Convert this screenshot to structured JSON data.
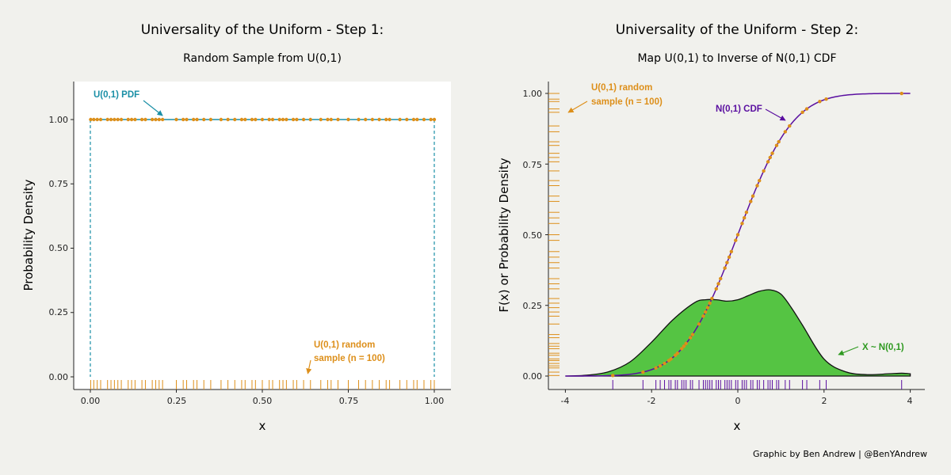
{
  "colors": {
    "orange": "#dd8f1a",
    "teal": "#1a8fa6",
    "purple": "#5a0fa0",
    "green": "#55c443",
    "greenDark": "#2f9a21",
    "panel": "#ffffff",
    "background": "#f1f1ed"
  },
  "credit": "Graphic by Ben Andrew | @BenYAndrew",
  "chart_data": [
    {
      "type": "scatter",
      "title": "Universality of the Uniform - Step 1:",
      "subtitle": "Random Sample from U(0,1)",
      "xlabel": "x",
      "ylabel": "Probability Density",
      "xlim": [
        -0.03,
        1.05
      ],
      "ylim": [
        -0.05,
        1.14
      ],
      "x_ticks": [
        "0.00",
        "0.25",
        "0.50",
        "0.75",
        "1.00"
      ],
      "y_ticks": [
        "0.00",
        "0.25",
        "0.50",
        "0.75",
        "1.00"
      ],
      "grid": false,
      "pdf": {
        "x": [
          0,
          1
        ],
        "y": 1.0,
        "style": "solid horizontal line with dashed vertical sides"
      },
      "annotations": [
        {
          "lines": [
            "U(0,1) PDF"
          ],
          "points_to": [
            0.21,
            1.0
          ]
        },
        {
          "lines": [
            "U(0,1) random",
            "sample (n = 100)"
          ],
          "points_to": [
            0.6,
            0.01
          ]
        }
      ],
      "rug_x": [
        0.001,
        0.01,
        0.02,
        0.03,
        0.05,
        0.06,
        0.07,
        0.08,
        0.09,
        0.11,
        0.12,
        0.13,
        0.15,
        0.16,
        0.18,
        0.19,
        0.2,
        0.21,
        0.25,
        0.27,
        0.28,
        0.3,
        0.31,
        0.33,
        0.35,
        0.38,
        0.4,
        0.42,
        0.44,
        0.45,
        0.47,
        0.48,
        0.5,
        0.52,
        0.53,
        0.55,
        0.56,
        0.57,
        0.59,
        0.6,
        0.62,
        0.64,
        0.67,
        0.69,
        0.7,
        0.72,
        0.75,
        0.78,
        0.8,
        0.82,
        0.84,
        0.86,
        0.87,
        0.9,
        0.92,
        0.94,
        0.95,
        0.97,
        0.99,
        1.0
      ]
    },
    {
      "type": "line",
      "title": "Universality of the Uniform - Step 2:",
      "subtitle": "Map U(0,1) to Inverse of N(0,1) CDF",
      "xlabel": "x",
      "ylabel": "F(x) or Probability Density",
      "xlim": [
        -4.4,
        4.2
      ],
      "ylim": [
        -0.05,
        1.05
      ],
      "x_ticks": [
        "-4",
        "-2",
        "0",
        "2",
        "4"
      ],
      "y_ticks": [
        "0.00",
        "0.25",
        "0.50",
        "0.75",
        "1.00"
      ],
      "grid": false,
      "series": [
        {
          "name": "N(0,1) CDF",
          "kind": "normal-cdf",
          "x_range": [
            -4,
            4
          ]
        },
        {
          "name": "X ~ N(0,1)",
          "kind": "density-area",
          "x": [
            -4,
            -3.5,
            -3,
            -2.5,
            -2,
            -1.5,
            -1,
            -0.75,
            -0.5,
            -0.25,
            0,
            0.25,
            0.5,
            0.75,
            1,
            1.25,
            1.5,
            2,
            2.5,
            3,
            3.5,
            3.8,
            4
          ],
          "y": [
            0,
            0.003,
            0.015,
            0.05,
            0.12,
            0.2,
            0.26,
            0.27,
            0.27,
            0.265,
            0.27,
            0.285,
            0.3,
            0.305,
            0.29,
            0.24,
            0.18,
            0.06,
            0.015,
            0.005,
            0.008,
            0.01,
            0.008
          ]
        }
      ],
      "annotations": [
        {
          "lines": [
            "N(0,1) CDF"
          ],
          "points_to": [
            1.1,
            0.88
          ]
        },
        {
          "lines": [
            "U(0,1) random",
            "sample (n = 100)"
          ],
          "points_to": [
            -3.9,
            0.93
          ]
        },
        {
          "lines": [
            "X ~ N(0,1)"
          ],
          "points_to": [
            2.3,
            0.07
          ]
        }
      ],
      "x_rug": [
        -2.9,
        -2.2,
        -1.9,
        -1.8,
        -1.7,
        -1.6,
        -1.55,
        -1.45,
        -1.4,
        -1.3,
        -1.25,
        -1.2,
        -1.1,
        -1.05,
        -0.9,
        -0.8,
        -0.75,
        -0.7,
        -0.65,
        -0.6,
        -0.5,
        -0.45,
        -0.4,
        -0.3,
        -0.25,
        -0.2,
        -0.15,
        -0.05,
        0.0,
        0.1,
        0.15,
        0.2,
        0.3,
        0.35,
        0.45,
        0.5,
        0.6,
        0.7,
        0.75,
        0.8,
        0.9,
        0.95,
        1.1,
        1.2,
        1.5,
        1.6,
        1.9,
        2.05,
        3.8
      ]
    }
  ]
}
